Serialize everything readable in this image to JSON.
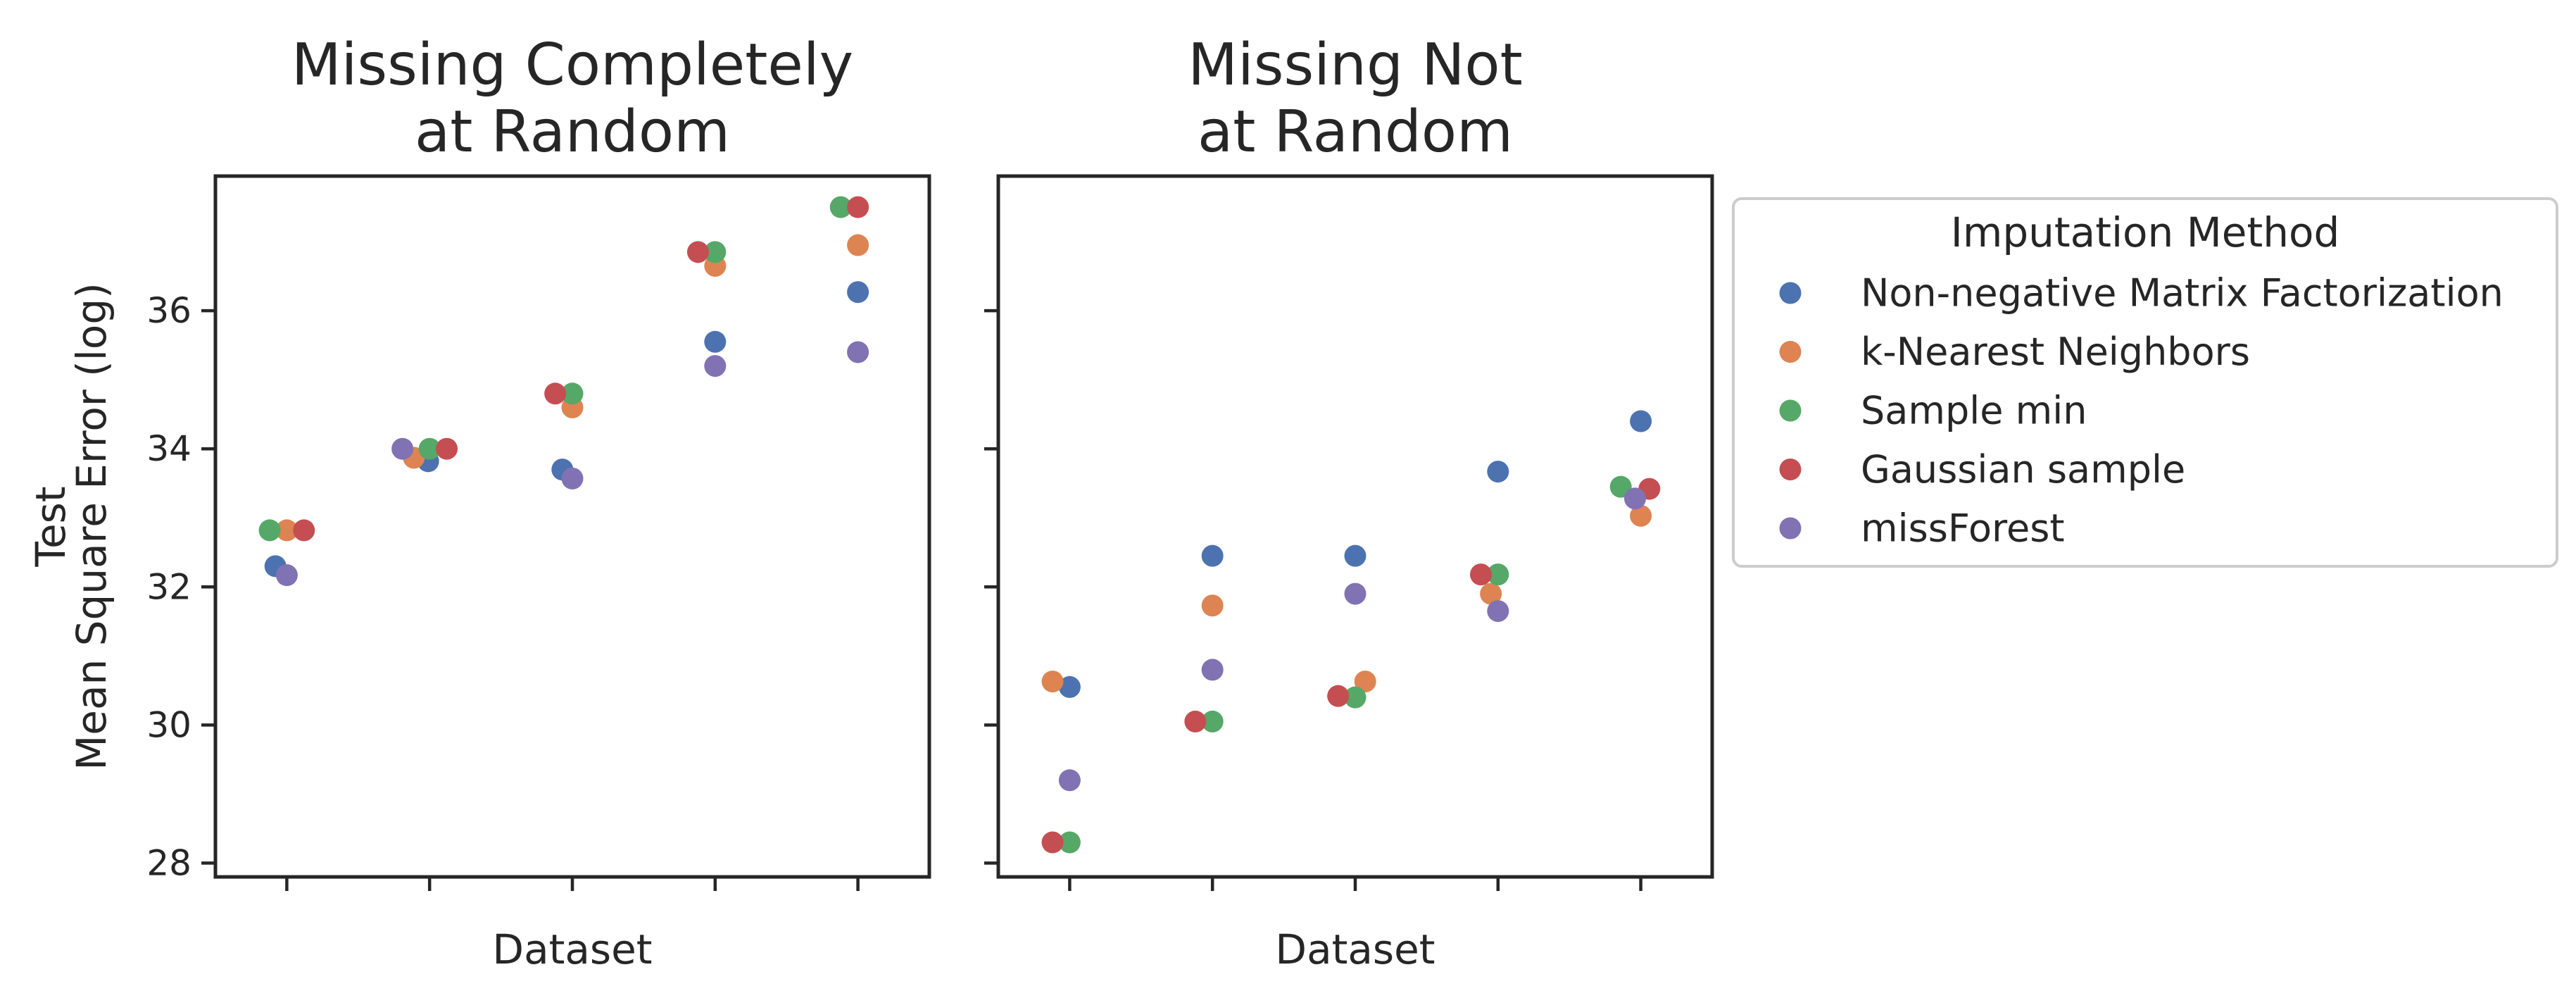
{
  "chart_data": {
    "type": "scatter",
    "ylabel_lines": [
      "Test",
      "Mean Square Error (log)"
    ],
    "xlabel": "Dataset",
    "ylim": [
      27.8,
      37.95
    ],
    "yticks": [
      28,
      30,
      32,
      34,
      36
    ],
    "x_categories": 5,
    "legend": {
      "title": "Imputation Method",
      "placement": "right-outside",
      "entries": [
        {
          "name": "Non-negative Matrix Factorization",
          "color": "#4c72b0"
        },
        {
          "name": "k-Nearest Neighbors",
          "color": "#dd8452"
        },
        {
          "name": "Sample min",
          "color": "#55a868"
        },
        {
          "name": "Gaussian sample",
          "color": "#c44e52"
        },
        {
          "name": "missForest",
          "color": "#8172b3"
        }
      ]
    },
    "panels": [
      {
        "title_lines": [
          "Missing Completely",
          "at Random"
        ],
        "series": [
          {
            "name": "Non-negative Matrix Factorization",
            "points": [
              [
                -0.08,
                32.3
              ],
              [
                -0.01,
                33.82
              ],
              [
                -0.07,
                33.7
              ],
              [
                0.0,
                35.55
              ],
              [
                0.0,
                36.27
              ]
            ]
          },
          {
            "name": "k-Nearest Neighbors",
            "points": [
              [
                0.0,
                32.82
              ],
              [
                -0.11,
                33.87
              ],
              [
                0.0,
                34.6
              ],
              [
                0.0,
                36.65
              ],
              [
                0.0,
                36.95
              ]
            ]
          },
          {
            "name": "Sample min",
            "points": [
              [
                -0.12,
                32.82
              ],
              [
                0.0,
                34.0
              ],
              [
                0.0,
                34.8
              ],
              [
                0.0,
                36.85
              ],
              [
                -0.12,
                37.5
              ]
            ]
          },
          {
            "name": "Gaussian sample",
            "points": [
              [
                0.12,
                32.82
              ],
              [
                0.12,
                34.0
              ],
              [
                -0.12,
                34.8
              ],
              [
                -0.12,
                36.85
              ],
              [
                0.0,
                37.5
              ]
            ]
          },
          {
            "name": "missForest",
            "points": [
              [
                0.0,
                32.17
              ],
              [
                -0.19,
                34.0
              ],
              [
                0.0,
                33.57
              ],
              [
                0.0,
                35.2
              ],
              [
                0.0,
                35.4
              ]
            ]
          }
        ]
      },
      {
        "title_lines": [
          "Missing Not",
          "at Random"
        ],
        "series": [
          {
            "name": "Non-negative Matrix Factorization",
            "points": [
              [
                0.0,
                30.55
              ],
              [
                0.0,
                32.45
              ],
              [
                0.0,
                32.45
              ],
              [
                0.0,
                33.67
              ],
              [
                0.0,
                34.4
              ]
            ]
          },
          {
            "name": "k-Nearest Neighbors",
            "points": [
              [
                -0.12,
                30.63
              ],
              [
                0.0,
                31.73
              ],
              [
                0.07,
                30.63
              ],
              [
                -0.05,
                31.9
              ],
              [
                0.0,
                33.03
              ]
            ]
          },
          {
            "name": "Sample min",
            "points": [
              [
                0.0,
                28.3
              ],
              [
                0.0,
                30.05
              ],
              [
                0.0,
                30.4
              ],
              [
                0.0,
                32.18
              ],
              [
                -0.14,
                33.45
              ]
            ]
          },
          {
            "name": "Gaussian sample",
            "points": [
              [
                -0.12,
                28.3
              ],
              [
                -0.12,
                30.05
              ],
              [
                -0.12,
                30.42
              ],
              [
                -0.12,
                32.18
              ],
              [
                0.06,
                33.42
              ]
            ]
          },
          {
            "name": "missForest",
            "points": [
              [
                0.0,
                29.2
              ],
              [
                0.0,
                30.8
              ],
              [
                0.0,
                31.9
              ],
              [
                0.0,
                31.65
              ],
              [
                -0.04,
                33.28
              ]
            ]
          }
        ]
      }
    ]
  }
}
